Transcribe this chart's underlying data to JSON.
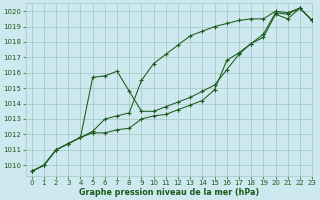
{
  "xlabel": "Graphe pression niveau de la mer (hPa)",
  "ylim": [
    1009.3,
    1020.5
  ],
  "xlim": [
    -0.5,
    23
  ],
  "yticks": [
    1010,
    1011,
    1012,
    1013,
    1014,
    1015,
    1016,
    1017,
    1018,
    1019,
    1020
  ],
  "xticks": [
    0,
    1,
    2,
    3,
    4,
    5,
    6,
    7,
    8,
    9,
    10,
    11,
    12,
    13,
    14,
    15,
    16,
    17,
    18,
    19,
    20,
    21,
    22,
    23
  ],
  "bg_color": "#cde8ee",
  "grid_color": "#a8cccc",
  "line_color": "#1a5c1a",
  "series": [
    [
      1009.6,
      1010.0,
      1011.0,
      1011.4,
      1011.8,
      1012.2,
      1013.0,
      1013.2,
      1013.4,
      1015.5,
      1016.6,
      1017.2,
      1017.8,
      1018.4,
      1018.7,
      1019.0,
      1019.2,
      1019.4,
      1019.5,
      1019.5,
      1020.0,
      1019.9,
      1020.2,
      1019.4
    ],
    [
      1009.6,
      1010.0,
      1011.0,
      1011.4,
      1011.8,
      1015.7,
      1015.8,
      1016.1,
      1014.8,
      1013.5,
      1013.5,
      1013.8,
      1014.1,
      1014.4,
      1014.8,
      1015.2,
      1016.2,
      1017.2,
      1017.9,
      1018.5,
      1019.9,
      1019.8,
      1020.2,
      1019.4
    ],
    [
      1009.6,
      1010.0,
      1011.0,
      1011.4,
      1011.8,
      1012.1,
      1012.1,
      1012.3,
      1012.4,
      1013.0,
      1013.2,
      1013.3,
      1013.6,
      1013.9,
      1014.2,
      1014.9,
      1016.8,
      1017.3,
      1017.9,
      1018.3,
      1019.8,
      1019.5,
      1020.2,
      1019.4
    ]
  ]
}
